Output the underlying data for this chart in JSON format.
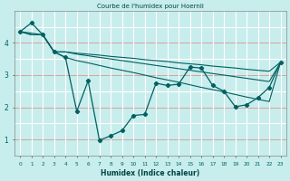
{
  "title": "Courbe de l'humidex pour Hoernli",
  "xlabel": "Humidex (Indice chaleur)",
  "bg_color": "#c8eded",
  "line_color": "#006060",
  "xmin": -0.5,
  "xmax": 23.5,
  "ymin": 0.5,
  "ymax": 5.0,
  "yticks": [
    1,
    2,
    3,
    4
  ],
  "series": [
    {
      "x": [
        0,
        1,
        2,
        3,
        4,
        5,
        6,
        7,
        8,
        9,
        10,
        11,
        12,
        13,
        14,
        15,
        16,
        17,
        18,
        19,
        20,
        21,
        22,
        23
      ],
      "y": [
        4.35,
        4.62,
        4.25,
        3.72,
        3.55,
        1.88,
        2.82,
        0.98,
        1.12,
        1.28,
        1.75,
        1.78,
        2.75,
        2.68,
        2.72,
        3.25,
        3.22,
        2.68,
        2.5,
        2.02,
        2.08,
        2.3,
        2.62,
        3.4
      ],
      "marker": true
    },
    {
      "x": [
        0,
        1,
        2,
        3,
        4,
        5,
        6,
        7,
        8,
        9,
        10,
        11,
        12,
        13,
        14,
        15,
        16,
        17,
        18,
        19,
        20,
        21,
        22,
        23
      ],
      "y": [
        4.35,
        4.25,
        4.25,
        3.72,
        3.72,
        3.68,
        3.65,
        3.62,
        3.58,
        3.55,
        3.52,
        3.48,
        3.45,
        3.42,
        3.38,
        3.35,
        3.32,
        3.28,
        3.25,
        3.22,
        3.18,
        3.15,
        3.12,
        3.4
      ],
      "marker": false
    },
    {
      "x": [
        0,
        1,
        2,
        3,
        4,
        5,
        6,
        7,
        8,
        9,
        10,
        11,
        12,
        13,
        14,
        15,
        16,
        17,
        18,
        19,
        20,
        21,
        22,
        23
      ],
      "y": [
        4.35,
        4.25,
        4.25,
        3.72,
        3.72,
        3.65,
        3.6,
        3.55,
        3.5,
        3.45,
        3.4,
        3.35,
        3.3,
        3.25,
        3.2,
        3.15,
        3.1,
        3.05,
        3.0,
        2.95,
        2.9,
        2.85,
        2.8,
        3.4
      ],
      "marker": false
    },
    {
      "x": [
        0,
        2,
        3,
        4,
        5,
        6,
        7,
        8,
        9,
        10,
        11,
        12,
        13,
        14,
        15,
        16,
        17,
        18,
        19,
        20,
        21,
        22,
        23
      ],
      "y": [
        4.35,
        4.25,
        3.72,
        3.55,
        3.45,
        3.38,
        3.3,
        3.22,
        3.15,
        3.08,
        3.0,
        2.92,
        2.85,
        2.78,
        2.7,
        2.62,
        2.55,
        2.48,
        2.4,
        2.32,
        2.25,
        2.18,
        3.4
      ],
      "marker": false
    }
  ]
}
